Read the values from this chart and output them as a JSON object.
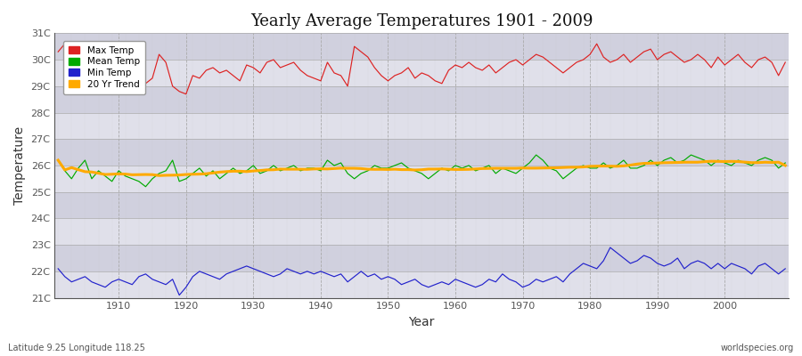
{
  "title": "Yearly Average Temperatures 1901 - 2009",
  "xlabel": "Year",
  "ylabel": "Temperature",
  "subtitle_left": "Latitude 9.25 Longitude 118.25",
  "subtitle_right": "worldspecies.org",
  "ylim": [
    21.0,
    31.0
  ],
  "yticks": [
    21,
    22,
    23,
    24,
    25,
    26,
    27,
    28,
    29,
    30,
    31
  ],
  "ytick_labels": [
    "21C",
    "22C",
    "23C",
    "24C",
    "25C",
    "26C",
    "27C",
    "28C",
    "29C",
    "30C",
    "31C"
  ],
  "year_start": 1901,
  "year_end": 2009,
  "max_temp_color": "#dd2222",
  "mean_temp_color": "#00aa00",
  "min_temp_color": "#2222cc",
  "trend_color": "#ffaa00",
  "bg_color": "#e8e8ee",
  "band_color_light": "#dcdce8",
  "band_color_dark": "#c8c8d8",
  "grid_color_v": "#aaaaaa",
  "legend_labels": [
    "Max Temp",
    "Mean Temp",
    "Min Temp",
    "20 Yr Trend"
  ],
  "max_temps": [
    30.3,
    30.6,
    30.0,
    29.4,
    30.5,
    29.8,
    29.6,
    29.3,
    29.1,
    29.7,
    29.2,
    28.8,
    29.5,
    29.1,
    29.3,
    30.2,
    29.9,
    29.0,
    28.8,
    28.7,
    29.4,
    29.3,
    29.6,
    29.7,
    29.5,
    29.6,
    29.4,
    29.2,
    29.8,
    29.7,
    29.5,
    29.9,
    30.0,
    29.7,
    29.8,
    29.9,
    29.6,
    29.4,
    29.3,
    29.2,
    29.9,
    29.5,
    29.4,
    29.0,
    30.5,
    30.3,
    30.1,
    29.7,
    29.4,
    29.2,
    29.4,
    29.5,
    29.7,
    29.3,
    29.5,
    29.4,
    29.2,
    29.1,
    29.6,
    29.8,
    29.7,
    29.9,
    29.7,
    29.6,
    29.8,
    29.5,
    29.7,
    29.9,
    30.0,
    29.8,
    30.0,
    30.2,
    30.1,
    29.9,
    29.7,
    29.5,
    29.7,
    29.9,
    30.0,
    30.2,
    30.6,
    30.1,
    29.9,
    30.0,
    30.2,
    29.9,
    30.1,
    30.3,
    30.4,
    30.0,
    30.2,
    30.3,
    30.1,
    29.9,
    30.0,
    30.2,
    30.0,
    29.7,
    30.1,
    29.8,
    30.0,
    30.2,
    29.9,
    29.7,
    30.0,
    30.1,
    29.9,
    29.4,
    29.9
  ],
  "mean_temps": [
    26.2,
    25.8,
    25.5,
    25.9,
    26.2,
    25.5,
    25.8,
    25.6,
    25.4,
    25.8,
    25.6,
    25.5,
    25.4,
    25.2,
    25.5,
    25.7,
    25.8,
    26.2,
    25.4,
    25.5,
    25.7,
    25.9,
    25.6,
    25.8,
    25.5,
    25.7,
    25.9,
    25.7,
    25.8,
    26.0,
    25.7,
    25.8,
    26.0,
    25.8,
    25.9,
    26.0,
    25.8,
    25.9,
    25.9,
    25.8,
    26.2,
    26.0,
    26.1,
    25.7,
    25.5,
    25.7,
    25.8,
    26.0,
    25.9,
    25.9,
    26.0,
    26.1,
    25.9,
    25.8,
    25.7,
    25.5,
    25.7,
    25.9,
    25.8,
    26.0,
    25.9,
    26.0,
    25.8,
    25.9,
    26.0,
    25.7,
    25.9,
    25.8,
    25.7,
    25.9,
    26.1,
    26.4,
    26.2,
    25.9,
    25.8,
    25.5,
    25.7,
    25.9,
    26.0,
    25.9,
    25.9,
    26.1,
    25.9,
    26.0,
    26.2,
    25.9,
    25.9,
    26.0,
    26.2,
    26.0,
    26.2,
    26.3,
    26.1,
    26.2,
    26.4,
    26.3,
    26.2,
    26.0,
    26.2,
    26.1,
    26.0,
    26.2,
    26.1,
    26.0,
    26.2,
    26.3,
    26.2,
    25.9,
    26.1
  ],
  "min_temps": [
    22.1,
    21.8,
    21.6,
    21.7,
    21.8,
    21.6,
    21.5,
    21.4,
    21.6,
    21.7,
    21.6,
    21.5,
    21.8,
    21.9,
    21.7,
    21.6,
    21.5,
    21.7,
    21.1,
    21.4,
    21.8,
    22.0,
    21.9,
    21.8,
    21.7,
    21.9,
    22.0,
    22.1,
    22.2,
    22.1,
    22.0,
    21.9,
    21.8,
    21.9,
    22.1,
    22.0,
    21.9,
    22.0,
    21.9,
    22.0,
    21.9,
    21.8,
    21.9,
    21.6,
    21.8,
    22.0,
    21.8,
    21.9,
    21.7,
    21.8,
    21.7,
    21.5,
    21.6,
    21.7,
    21.5,
    21.4,
    21.5,
    21.6,
    21.5,
    21.7,
    21.6,
    21.5,
    21.4,
    21.5,
    21.7,
    21.6,
    21.9,
    21.7,
    21.6,
    21.4,
    21.5,
    21.7,
    21.6,
    21.7,
    21.8,
    21.6,
    21.9,
    22.1,
    22.3,
    22.2,
    22.1,
    22.4,
    22.9,
    22.7,
    22.5,
    22.3,
    22.4,
    22.6,
    22.5,
    22.3,
    22.2,
    22.3,
    22.5,
    22.1,
    22.3,
    22.4,
    22.3,
    22.1,
    22.3,
    22.1,
    22.3,
    22.2,
    22.1,
    21.9,
    22.2,
    22.3,
    22.1,
    21.9,
    22.1
  ]
}
